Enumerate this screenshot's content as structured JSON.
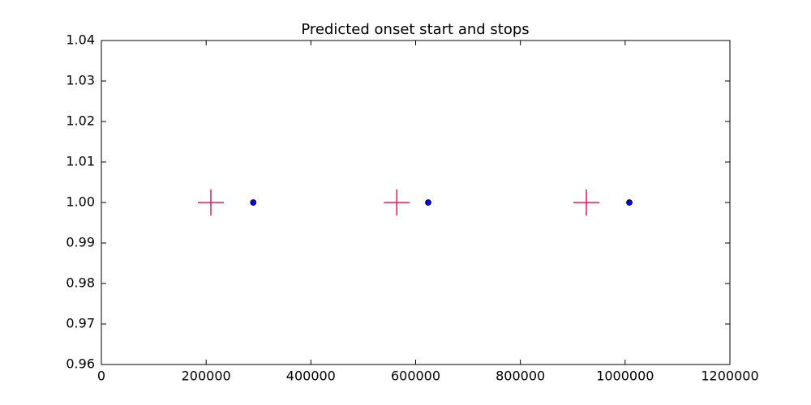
{
  "chart_data": {
    "type": "scatter",
    "title": "Predicted onset start and stops",
    "series": [
      {
        "marker": "plus",
        "color": "#e8175d",
        "x": [
          209000,
          564000,
          926000
        ],
        "values": [
          1,
          1,
          1
        ]
      },
      {
        "marker": "circle",
        "color": "#0000ff",
        "x": [
          290000,
          624000,
          1008000
        ],
        "values": [
          1,
          1,
          1
        ]
      }
    ],
    "xlim": [
      0,
      1200000
    ],
    "xticks": [
      0,
      200000,
      400000,
      600000,
      800000,
      1000000,
      1200000
    ],
    "ylim": [
      0.96,
      1.04
    ],
    "yticks": [
      0.96,
      0.97,
      0.98,
      0.99,
      {
        "value": 1,
        "label": "1.00"
      },
      1.01,
      1.02,
      1.03,
      1.04
    ],
    "grid": false
  }
}
